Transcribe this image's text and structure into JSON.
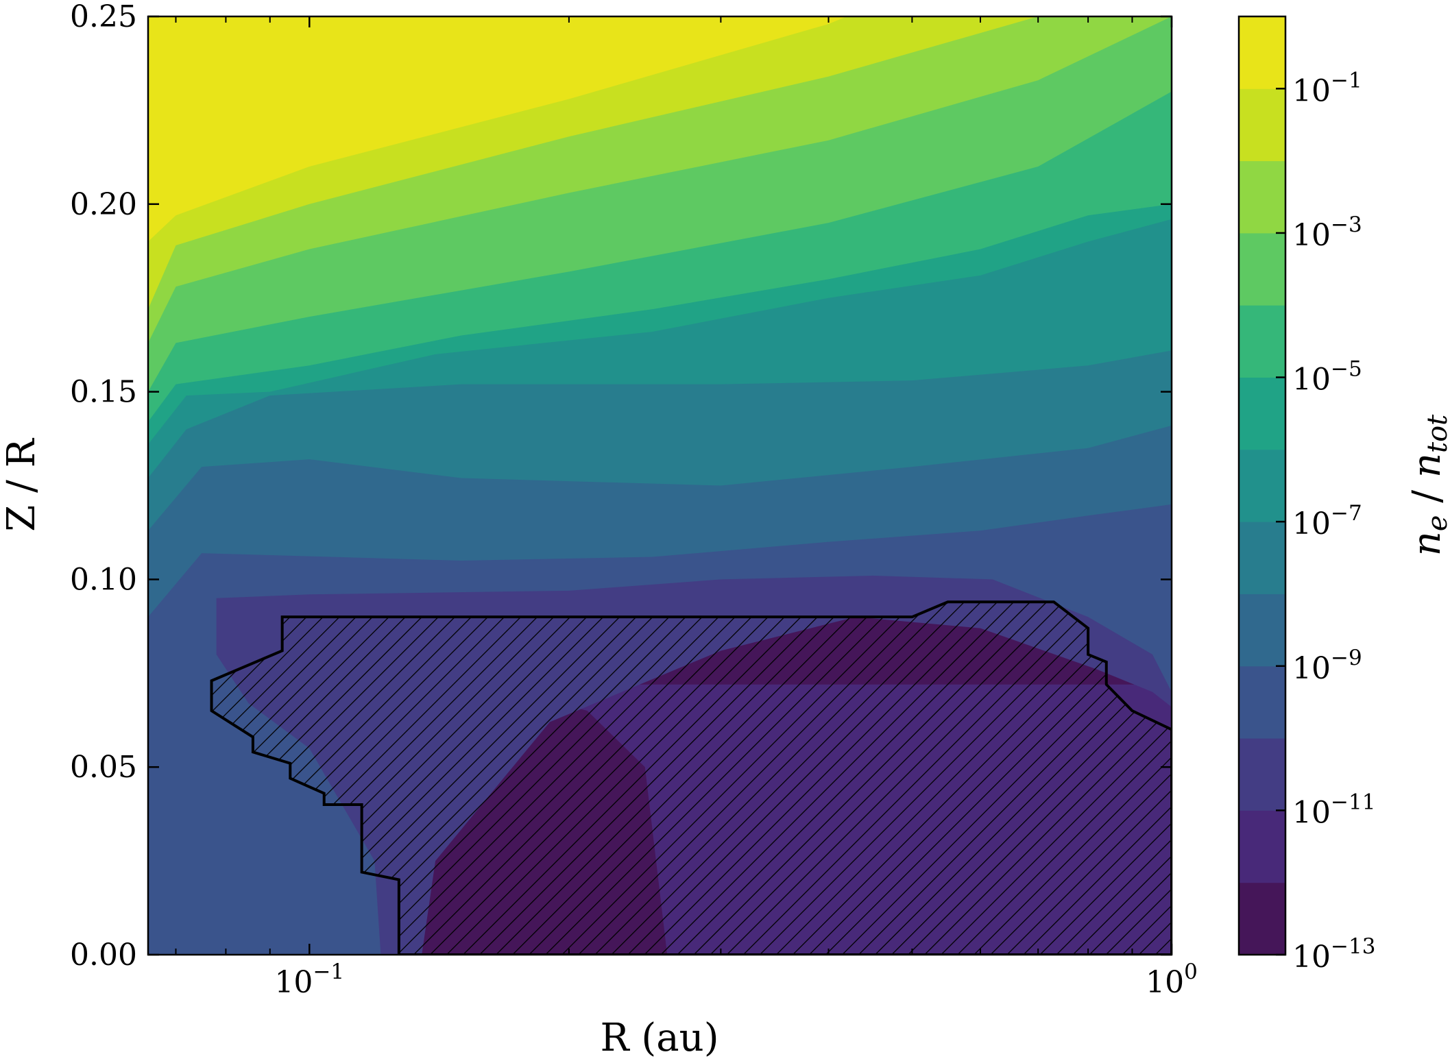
{
  "chart_data": {
    "type": "heatmap",
    "subtype": "filled-contour",
    "title": "",
    "xlabel": "R (au)",
    "ylabel": "Z / R",
    "x_scale": "log",
    "xlim": [
      0.065,
      1.0
    ],
    "ylim": [
      0.0,
      0.25
    ],
    "x_ticks": [
      {
        "value": 0.1,
        "base": "10",
        "exp": "−1"
      },
      {
        "value": 1.0,
        "base": "10",
        "exp": "0"
      }
    ],
    "y_ticks": [
      {
        "value": 0.0,
        "label": "0.00"
      },
      {
        "value": 0.05,
        "label": "0.05"
      },
      {
        "value": 0.1,
        "label": "0.10"
      },
      {
        "value": 0.15,
        "label": "0.15"
      },
      {
        "value": 0.2,
        "label": "0.20"
      },
      {
        "value": 0.25,
        "label": "0.25"
      }
    ],
    "colorbar": {
      "label": "n_e / n_tot",
      "label_parts": {
        "n": "n",
        "e": "e",
        "slash": " / ",
        "n2": "n",
        "tot": "tot"
      },
      "scale": "log",
      "levels_log10": [
        -13,
        -12,
        -11,
        -10,
        -9,
        -8,
        -7,
        -6,
        -5,
        -4,
        -3,
        -2,
        -1,
        0
      ],
      "colors": [
        "#440154",
        "#472c7a",
        "#3b518b",
        "#2c718e",
        "#21908d",
        "#27ad81",
        "#5cc863",
        "#aadc32",
        "#fde725",
        "#46327e",
        "#3b528b",
        "#2d708e",
        "#25858e",
        "#1e9b8a"
      ],
      "band_colors": [
        "#451659",
        "#482979",
        "#433d84",
        "#3a548c",
        "#30698e",
        "#287d8e",
        "#21918c",
        "#20a386",
        "#35b779",
        "#5ec962",
        "#90d743",
        "#c8e020",
        "#e8e419"
      ],
      "ticks": [
        {
          "base": "10",
          "exp": "−13"
        },
        {
          "base": "10",
          "exp": "−11"
        },
        {
          "base": "10",
          "exp": "−9"
        },
        {
          "base": "10",
          "exp": "−7"
        },
        {
          "base": "10",
          "exp": "−5"
        },
        {
          "base": "10",
          "exp": "−3"
        },
        {
          "base": "10",
          "exp": "−1"
        }
      ],
      "tick_values_log10": [
        -13,
        -11,
        -9,
        -7,
        -5,
        -3,
        -1
      ]
    },
    "contour_boundaries": [
      {
        "upper_level_log10": -13,
        "points": [
          [
            0.26,
            0.0
          ],
          [
            0.245,
            0.05
          ],
          [
            0.21,
            0.065
          ],
          [
            0.16,
            0.072
          ],
          [
            0.14,
            0.072
          ]
        ],
        "closed": "lower"
      },
      {
        "upper_level_log10": -12,
        "points": [
          [
            0.135,
            0.0
          ],
          [
            0.14,
            0.025
          ],
          [
            0.19,
            0.062
          ],
          [
            0.3,
            0.081
          ],
          [
            0.43,
            0.09
          ],
          [
            0.6,
            0.087
          ],
          [
            0.82,
            0.076
          ],
          [
            0.95,
            0.07
          ],
          [
            1.0,
            0.066
          ]
        ]
      },
      {
        "upper_level_log10": -11,
        "points": [
          [
            0.121,
            0.0
          ],
          [
            0.119,
            0.025
          ],
          [
            0.1,
            0.055
          ],
          [
            0.085,
            0.067
          ],
          [
            0.078,
            0.08
          ],
          [
            0.078,
            0.095
          ],
          [
            0.1,
            0.096
          ],
          [
            0.2,
            0.097
          ],
          [
            0.3,
            0.1
          ],
          [
            0.45,
            0.101
          ],
          [
            0.62,
            0.1
          ],
          [
            0.8,
            0.09
          ],
          [
            0.95,
            0.08
          ],
          [
            1.0,
            0.07
          ]
        ]
      },
      {
        "upper_level_log10": -10,
        "points": [
          [
            0.065,
            0.09
          ],
          [
            0.075,
            0.107
          ],
          [
            0.15,
            0.105
          ],
          [
            0.25,
            0.106
          ],
          [
            0.4,
            0.11
          ],
          [
            0.6,
            0.113
          ],
          [
            0.8,
            0.117
          ],
          [
            1.0,
            0.12
          ]
        ]
      },
      {
        "upper_level_log10": -9,
        "points": [
          [
            0.065,
            0.113
          ],
          [
            0.075,
            0.13
          ],
          [
            0.1,
            0.132
          ],
          [
            0.15,
            0.127
          ],
          [
            0.3,
            0.125
          ],
          [
            0.5,
            0.13
          ],
          [
            0.8,
            0.135
          ],
          [
            1.0,
            0.141
          ]
        ]
      },
      {
        "upper_level_log10": -8,
        "points": [
          [
            0.065,
            0.127
          ],
          [
            0.072,
            0.14
          ],
          [
            0.09,
            0.149
          ],
          [
            0.15,
            0.152
          ],
          [
            0.3,
            0.152
          ],
          [
            0.5,
            0.153
          ],
          [
            0.8,
            0.157
          ],
          [
            1.0,
            0.161
          ]
        ]
      },
      {
        "upper_level_log10": -7,
        "points": [
          [
            0.065,
            0.136
          ],
          [
            0.072,
            0.149
          ],
          [
            0.09,
            0.15
          ],
          [
            0.14,
            0.16
          ],
          [
            0.25,
            0.166
          ],
          [
            0.4,
            0.175
          ],
          [
            0.6,
            0.181
          ],
          [
            0.8,
            0.19
          ],
          [
            1.0,
            0.196
          ]
        ]
      },
      {
        "upper_level_log10": -6,
        "points": [
          [
            0.065,
            0.142
          ],
          [
            0.07,
            0.152
          ],
          [
            0.1,
            0.157
          ],
          [
            0.15,
            0.165
          ],
          [
            0.25,
            0.172
          ],
          [
            0.4,
            0.18
          ],
          [
            0.6,
            0.188
          ],
          [
            0.8,
            0.197
          ],
          [
            1.0,
            0.2
          ]
        ]
      },
      {
        "upper_level_log10": -5,
        "points": [
          [
            0.065,
            0.15
          ],
          [
            0.07,
            0.163
          ],
          [
            0.1,
            0.17
          ],
          [
            0.2,
            0.182
          ],
          [
            0.4,
            0.195
          ],
          [
            0.7,
            0.21
          ],
          [
            1.0,
            0.23
          ]
        ]
      },
      {
        "upper_level_log10": -4,
        "points": [
          [
            0.065,
            0.163
          ],
          [
            0.07,
            0.178
          ],
          [
            0.1,
            0.188
          ],
          [
            0.2,
            0.203
          ],
          [
            0.4,
            0.217
          ],
          [
            0.7,
            0.233
          ],
          [
            1.0,
            0.25
          ]
        ]
      },
      {
        "upper_level_log10": -3,
        "points": [
          [
            0.065,
            0.172
          ],
          [
            0.07,
            0.189
          ],
          [
            0.1,
            0.2
          ],
          [
            0.2,
            0.218
          ],
          [
            0.4,
            0.234
          ],
          [
            0.7,
            0.25
          ]
        ]
      },
      {
        "upper_level_log10": -2,
        "points": [
          [
            0.065,
            0.19
          ],
          [
            0.07,
            0.197
          ],
          [
            0.1,
            0.21
          ],
          [
            0.2,
            0.228
          ],
          [
            0.4,
            0.248
          ],
          [
            0.42,
            0.25
          ]
        ]
      }
    ],
    "hatched_region": {
      "description_visible": false,
      "points": [
        [
          0.127,
          0.0
        ],
        [
          0.127,
          0.02
        ],
        [
          0.115,
          0.022
        ],
        [
          0.115,
          0.04
        ],
        [
          0.104,
          0.04
        ],
        [
          0.104,
          0.043
        ],
        [
          0.095,
          0.047
        ],
        [
          0.095,
          0.051
        ],
        [
          0.086,
          0.054
        ],
        [
          0.086,
          0.058
        ],
        [
          0.077,
          0.065
        ],
        [
          0.077,
          0.073
        ],
        [
          0.093,
          0.081
        ],
        [
          0.093,
          0.09
        ],
        [
          0.5,
          0.09
        ],
        [
          0.55,
          0.094
        ],
        [
          0.73,
          0.094
        ],
        [
          0.8,
          0.087
        ],
        [
          0.8,
          0.08
        ],
        [
          0.84,
          0.078
        ],
        [
          0.84,
          0.072
        ],
        [
          0.9,
          0.065
        ],
        [
          1.0,
          0.06
        ],
        [
          1.0,
          0.0
        ]
      ]
    },
    "grid": false,
    "legend": "none"
  }
}
